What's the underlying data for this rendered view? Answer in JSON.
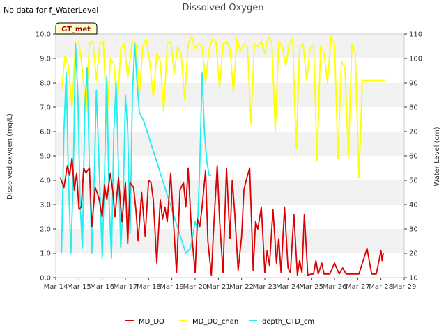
{
  "page": {
    "title": "Dissolved Oxygen",
    "nodata_note": "No data for f_WaterLevel",
    "badge": "GT_met"
  },
  "colors": {
    "MD_DO": "#dd0000",
    "MD_DO_chan": "#ffff00",
    "depth_CTD_cm": "#22eeee",
    "band": "#f2f2f2",
    "frame": "#cccccc"
  },
  "chart_data": {
    "type": "line",
    "title": "Dissolved Oxygen",
    "xlabel": "",
    "ylabel": "Dissolved oxygen (mg/L)",
    "y2label": "Water Level (cm)",
    "xlim": [
      14,
      29
    ],
    "ylim": [
      0,
      10
    ],
    "y2lim": [
      10,
      110
    ],
    "grid": "horizontal bands",
    "legend_position": "bottom",
    "x_ticks": [
      "Mar 14",
      "Mar 15",
      "Mar 16",
      "Mar 17",
      "Mar 18",
      "Mar 19",
      "Mar 20",
      "Mar 21",
      "Mar 22",
      "Mar 23",
      "Mar 24",
      "Mar 25",
      "Mar 26",
      "Mar 27",
      "Mar 28",
      "Mar 29"
    ],
    "y_ticks": [
      "0.0",
      "1.0",
      "2.0",
      "3.0",
      "4.0",
      "5.0",
      "6.0",
      "7.0",
      "8.0",
      "9.0",
      "10.0"
    ],
    "y2_ticks": [
      "10",
      "20",
      "30",
      "40",
      "50",
      "60",
      "70",
      "80",
      "90",
      "100",
      "110"
    ],
    "series": [
      {
        "name": "MD_DO",
        "axis": "left",
        "x": [
          14.2,
          14.35,
          14.5,
          14.6,
          14.7,
          14.8,
          14.9,
          15.0,
          15.1,
          15.2,
          15.3,
          15.45,
          15.55,
          15.7,
          15.85,
          16.0,
          16.1,
          16.2,
          16.35,
          16.45,
          16.55,
          16.7,
          16.85,
          17.0,
          17.1,
          17.2,
          17.35,
          17.45,
          17.55,
          17.7,
          17.85,
          18.0,
          18.1,
          18.2,
          18.35,
          18.5,
          18.6,
          18.7,
          18.8,
          18.95,
          19.05,
          19.2,
          19.35,
          19.5,
          19.6,
          19.7,
          19.85,
          20.0,
          20.1,
          20.2,
          20.3,
          20.45,
          20.55,
          20.7,
          20.8,
          20.95,
          21.05,
          21.2,
          21.35,
          21.5,
          21.6,
          21.7,
          21.85,
          22.0,
          22.1,
          22.2,
          22.35,
          22.5,
          22.6,
          22.7,
          22.85,
          23.0,
          23.1,
          23.2,
          23.35,
          23.5,
          23.6,
          23.7,
          23.85,
          24.0,
          24.1,
          24.25,
          24.4,
          24.5,
          24.6,
          24.7,
          24.85,
          25.0,
          25.1,
          25.2,
          25.3,
          25.45,
          25.55,
          25.7,
          25.8,
          26.0,
          26.2,
          26.35,
          26.5,
          26.7,
          26.9,
          27.05,
          27.2,
          27.4,
          27.6,
          27.8,
          28.0,
          28.05,
          28.1
        ],
        "values": [
          4.1,
          3.7,
          4.6,
          4.2,
          4.9,
          3.6,
          4.3,
          2.8,
          2.9,
          4.5,
          4.3,
          4.5,
          2.1,
          3.7,
          3.3,
          2.5,
          3.8,
          3.2,
          4.3,
          3.6,
          2.5,
          4.1,
          2.3,
          3.9,
          1.4,
          3.9,
          3.7,
          2.8,
          1.5,
          3.5,
          1.7,
          4.0,
          3.9,
          3.2,
          0.6,
          3.2,
          2.4,
          2.9,
          2.3,
          4.3,
          2.6,
          0.2,
          3.6,
          3.9,
          2.9,
          4.5,
          1.8,
          0.2,
          2.4,
          2.1,
          2.9,
          4.4,
          1.5,
          0.1,
          2.1,
          4.6,
          2.4,
          0.2,
          4.5,
          1.6,
          4.0,
          2.7,
          0.3,
          1.7,
          3.6,
          4.0,
          4.5,
          0.3,
          2.3,
          2.0,
          2.9,
          0.2,
          1.1,
          0.5,
          2.8,
          0.6,
          1.6,
          0.2,
          2.9,
          0.4,
          0.2,
          2.6,
          0.1,
          0.7,
          0.2,
          2.6,
          0.1,
          0.15,
          0.15,
          0.7,
          0.15,
          0.6,
          0.15,
          0.15,
          0.15,
          0.6,
          0.15,
          0.4,
          0.15,
          0.15,
          0.15,
          0.15,
          0.6,
          1.2,
          0.15,
          0.15,
          1.1,
          0.7,
          1.0
        ]
      },
      {
        "name": "MD_DO_chan",
        "axis": "left",
        "x": [
          14.25,
          14.4,
          14.55,
          14.7,
          14.85,
          15.0,
          15.15,
          15.3,
          15.45,
          15.6,
          15.75,
          15.9,
          16.05,
          16.2,
          16.35,
          16.5,
          16.65,
          16.8,
          16.95,
          17.1,
          17.3,
          17.45,
          17.6,
          17.75,
          17.9,
          18.05,
          18.2,
          18.35,
          18.5,
          18.65,
          18.8,
          18.95,
          19.1,
          19.25,
          19.4,
          19.55,
          19.7,
          19.85,
          20.0,
          20.15,
          20.3,
          20.45,
          20.6,
          20.75,
          20.9,
          21.05,
          21.2,
          21.35,
          21.5,
          21.65,
          21.8,
          21.95,
          22.1,
          22.25,
          22.4,
          22.55,
          22.7,
          22.85,
          23.0,
          23.15,
          23.3,
          23.45,
          23.6,
          23.75,
          23.9,
          24.05,
          24.2,
          24.35,
          24.5,
          24.65,
          24.8,
          24.95,
          25.1,
          25.25,
          25.4,
          25.55,
          25.7,
          25.85,
          26.0,
          26.15,
          26.3,
          26.45,
          26.6,
          26.75,
          26.9,
          27.05,
          27.2,
          27.35,
          27.5,
          27.65,
          27.8,
          27.95,
          28.1,
          28.2
        ],
        "values": [
          7.7,
          9.1,
          8.7,
          7.0,
          9.6,
          9.7,
          8.5,
          6.8,
          9.6,
          9.7,
          8.1,
          9.6,
          9.7,
          6.3,
          9.0,
          8.8,
          7.0,
          9.4,
          9.6,
          8.2,
          9.7,
          9.6,
          7.5,
          9.5,
          9.8,
          8.8,
          7.4,
          9.2,
          8.9,
          6.8,
          9.6,
          9.7,
          8.4,
          9.5,
          9.2,
          7.3,
          9.6,
          9.9,
          9.4,
          9.6,
          9.5,
          8.0,
          9.4,
          9.8,
          9.7,
          7.8,
          9.6,
          9.7,
          9.4,
          7.6,
          9.8,
          9.3,
          9.6,
          9.5,
          6.3,
          9.6,
          9.5,
          9.7,
          9.2,
          9.9,
          9.7,
          6.0,
          9.7,
          9.5,
          8.7,
          9.6,
          9.8,
          5.3,
          9.5,
          9.6,
          8.1,
          9.4,
          9.6,
          4.8,
          9.5,
          9.2,
          8.0,
          9.9,
          9.6,
          4.9,
          8.9,
          8.6,
          5.0,
          9.6,
          9.2,
          4.1,
          8.1,
          8.1,
          8.1,
          8.1,
          8.1,
          8.1,
          8.1,
          8.1
        ]
      },
      {
        "name": "depth_CTD_cm",
        "axis": "right",
        "x": [
          14.25,
          14.35,
          14.45,
          14.55,
          14.65,
          14.75,
          14.85,
          14.95,
          15.05,
          15.15,
          15.25,
          15.35,
          15.45,
          15.55,
          15.65,
          15.75,
          15.85,
          16.0,
          16.1,
          16.2,
          16.3,
          16.4,
          16.5,
          16.6,
          16.7,
          16.8,
          16.9,
          17.0,
          17.1,
          17.2,
          17.3,
          17.4,
          17.5,
          17.6,
          17.7,
          17.8,
          18.0,
          18.2,
          18.4,
          18.6,
          18.8,
          19.0,
          19.2,
          19.4,
          19.6,
          19.8,
          20.0,
          20.1,
          20.2,
          20.3,
          20.4,
          20.5,
          20.6,
          20.7
        ],
        "values": [
          20,
          70,
          94,
          50,
          20,
          50,
          106,
          85,
          40,
          22,
          80,
          96,
          55,
          20,
          48,
          87,
          60,
          18,
          52,
          93,
          40,
          18,
          70,
          90,
          55,
          22,
          40,
          85,
          70,
          28,
          85,
          106,
          90,
          78,
          76,
          74,
          68,
          62,
          56,
          50,
          44,
          38,
          32,
          26,
          20,
          22,
          33,
          30,
          56,
          94,
          70,
          58,
          52,
          52
        ]
      }
    ]
  }
}
